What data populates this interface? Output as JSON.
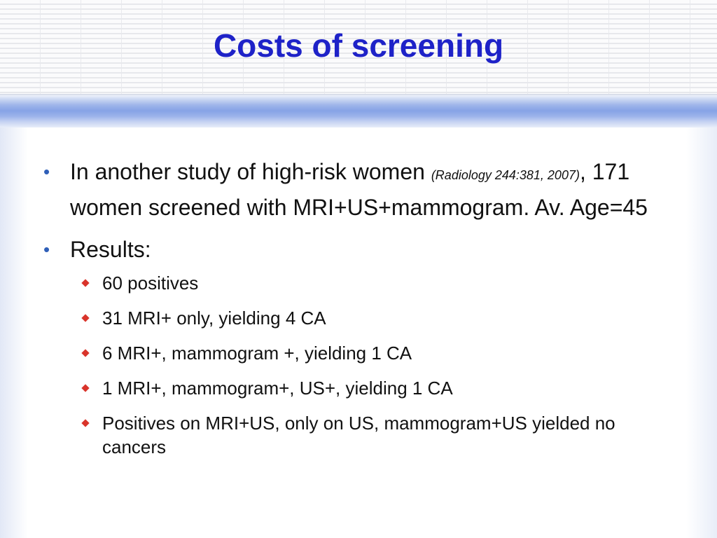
{
  "slide": {
    "title": "Costs of screening",
    "bullets": [
      {
        "text_before": "In another study of high-risk women ",
        "citation": "(Radiology 244:381, 2007)",
        "text_after": ", 171 women screened with MRI+US+mammogram.  Av. Age=45"
      },
      {
        "text": "Results:"
      }
    ],
    "sub_bullets": [
      "60 positives",
      "31 MRI+ only, yielding 4 CA",
      "6 MRI+, mammogram +, yielding 1 CA",
      "1 MRI+, mammogram+, US+, yielding 1 CA",
      "Positives on MRI+US, only on US, mammogram+US yielded no cancers"
    ]
  },
  "colors": {
    "title": "#1e22c8",
    "bullet_level1": "#2f5fb8",
    "bullet_level2": "#d9342b",
    "header_band": "#86a3e6"
  },
  "icons": {
    "level1_bullet": "bullet-dot",
    "level2_bullet": "red-diamond"
  }
}
